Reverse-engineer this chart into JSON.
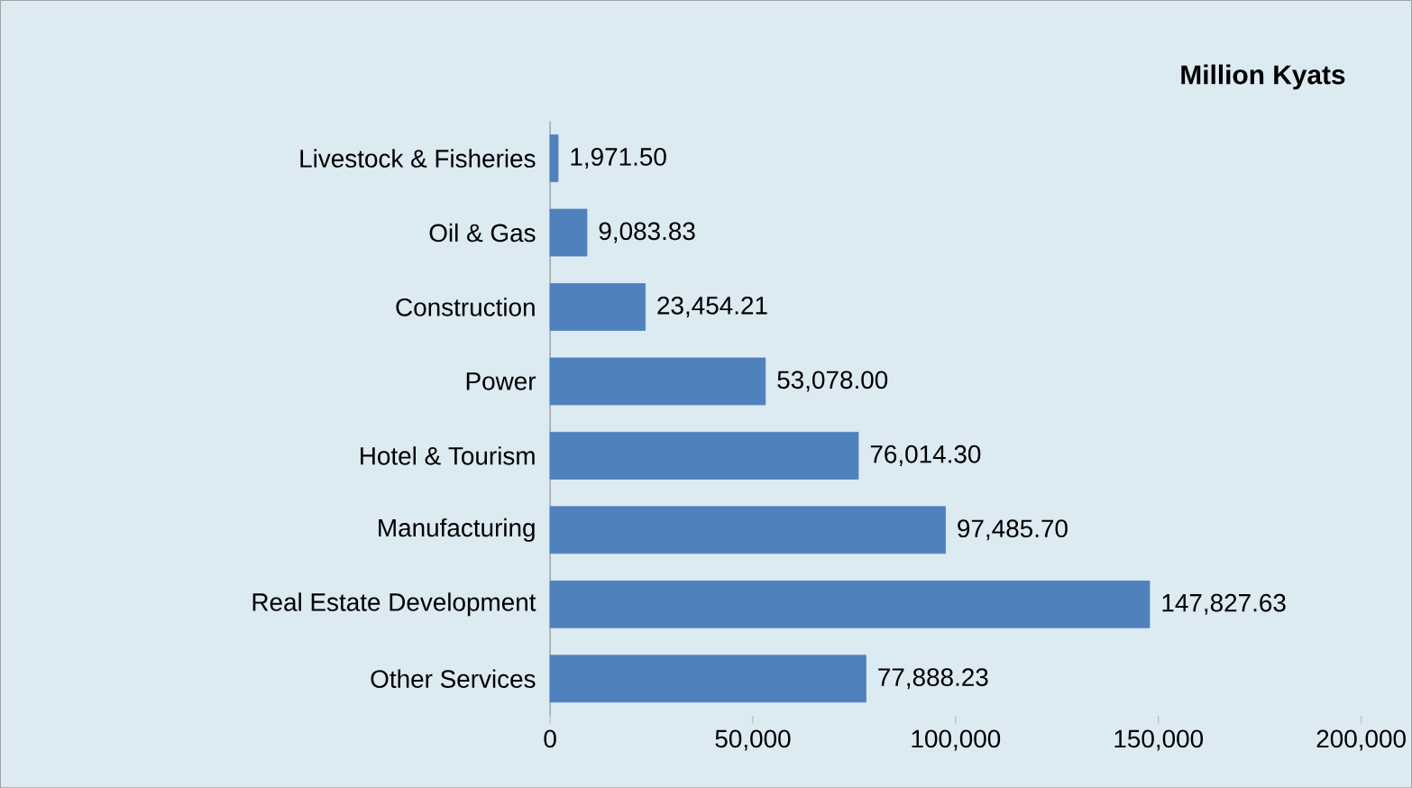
{
  "chart_data": {
    "type": "bar",
    "orientation": "horizontal",
    "title": "Million Kyats",
    "categories": [
      "Livestock & Fisheries",
      "Oil & Gas",
      "Construction",
      "Power",
      "Hotel & Tourism",
      "Manufacturing",
      "Real Estate Development",
      "Other Services"
    ],
    "values": [
      1971.5,
      9083.83,
      23454.21,
      53078.0,
      76014.3,
      97485.7,
      147827.63,
      77888.23
    ],
    "value_labels": [
      "1,971.50",
      "9,083.83",
      "23,454.21",
      "53,078.00",
      "76,014.30",
      "97,485.70",
      "147,827.63",
      "77,888.23"
    ],
    "color": "#4f81bd",
    "xlim": [
      0,
      200000
    ],
    "xticks": [
      0,
      {
        "value": 50000,
        "label": "50,000"
      },
      {
        "value": 100000,
        "label": "100,000"
      },
      {
        "value": 150000,
        "label": "150,000"
      },
      {
        "value": 200000,
        "label": "200,000"
      }
    ],
    "grid": false
  }
}
